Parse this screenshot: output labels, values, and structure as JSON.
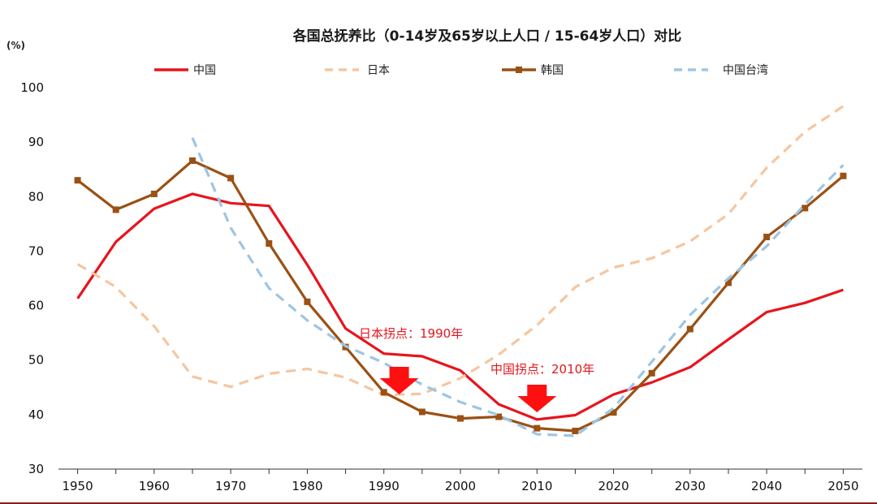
{
  "chart_data": {
    "type": "line",
    "title": "各国总抚养比（0-14岁及65岁以上人口 / 15-64岁人口）对比",
    "unit_label": "(%)",
    "x": [
      1950,
      1955,
      1960,
      1965,
      1970,
      1975,
      1980,
      1985,
      1990,
      1995,
      2000,
      2005,
      2010,
      2015,
      2020,
      2025,
      2030,
      2035,
      2040,
      2045,
      2050
    ],
    "x_ticks": [
      "1950",
      "1960",
      "1970",
      "1980",
      "1990",
      "2000",
      "2010",
      "2020",
      "2030",
      "2040",
      "2050"
    ],
    "y_ticks": [
      "30",
      "40",
      "50",
      "60",
      "70",
      "80",
      "90",
      "100"
    ],
    "xlim": [
      1947.5,
      2052.5
    ],
    "ylim": [
      30,
      100
    ],
    "series": [
      {
        "name": "中国",
        "color": "#e8141c",
        "style": "solid",
        "marker": "none",
        "values": [
          61.3,
          71.7,
          77.8,
          80.5,
          78.8,
          78.3,
          67.5,
          55.8,
          51.2,
          50.7,
          48.1,
          41.9,
          39.1,
          39.9,
          43.7,
          45.9,
          48.7,
          53.8,
          58.8,
          60.5,
          62.9
        ]
      },
      {
        "name": "日本",
        "color": "#f5c6a0",
        "style": "dashed",
        "marker": "none",
        "values": [
          67.6,
          63.4,
          56.2,
          47.0,
          45.1,
          47.5,
          48.4,
          46.8,
          43.6,
          43.8,
          46.7,
          51.0,
          56.4,
          63.4,
          67.0,
          68.7,
          71.8,
          76.8,
          85.3,
          91.9,
          96.6
        ]
      },
      {
        "name": "韩国",
        "color": "#9a5114",
        "style": "solid",
        "marker": "square",
        "values": [
          83.0,
          77.6,
          80.5,
          86.6,
          83.4,
          71.4,
          60.7,
          52.4,
          44.1,
          40.5,
          39.3,
          39.6,
          37.5,
          37.0,
          40.4,
          47.6,
          55.7,
          64.2,
          72.6,
          77.9,
          83.8
        ]
      },
      {
        "name": "中国台湾",
        "color": "#9ec5e2",
        "style": "dashed",
        "marker": "none",
        "values": [
          null,
          null,
          null,
          90.8,
          74.3,
          63.2,
          57.3,
          52.6,
          49.5,
          45.5,
          42.3,
          39.9,
          36.4,
          36.1,
          41.2,
          49.7,
          58.3,
          65.0,
          70.9,
          78.6,
          85.8
        ]
      }
    ],
    "annotations": [
      {
        "text": "日本拐点：1990年",
        "arrow_x": 1992
      },
      {
        "text": "中国拐点：2010年",
        "arrow_x": 2010
      }
    ],
    "legend_position": "top"
  }
}
